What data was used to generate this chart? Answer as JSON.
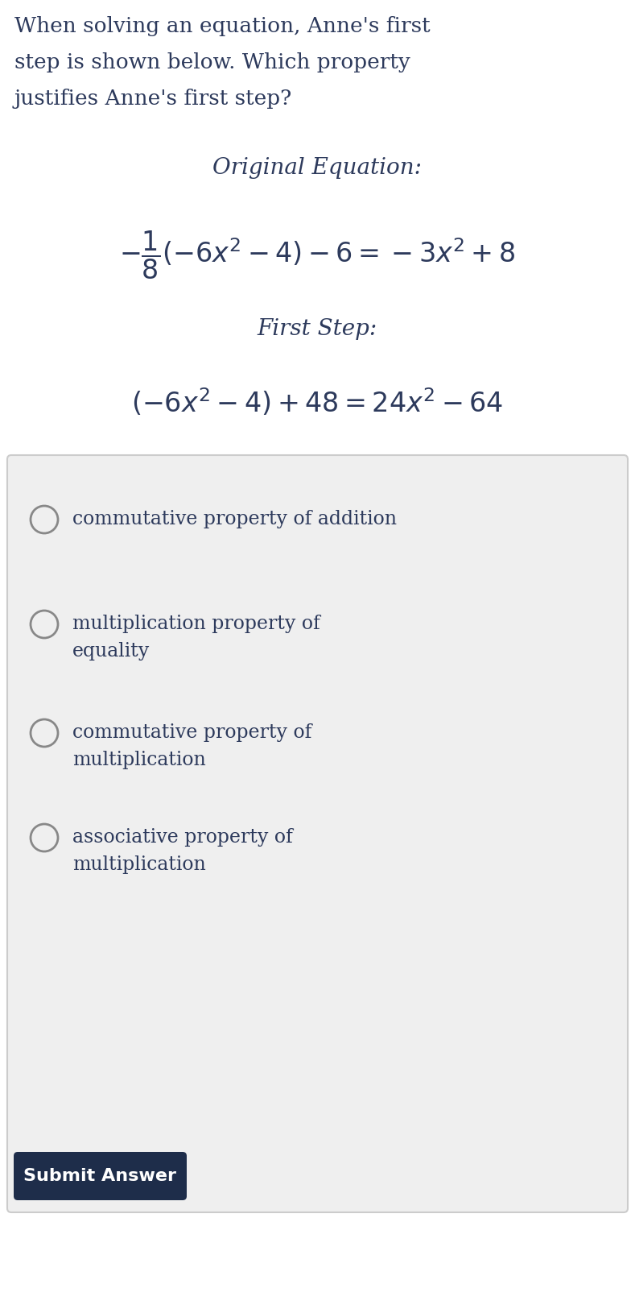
{
  "bg_color": "#ffffff",
  "text_color": "#2d3a5c",
  "question_line1": "When solving an equation, Anne's first",
  "question_line2": "step is shown below. Which property",
  "question_line3": "justifies Anne's first step?",
  "original_label": "Original Equation:",
  "first_step_label": "First Step:",
  "options": [
    "commutative property of addition",
    "multiplication property of\nequality",
    "commutative property of\nmultiplication",
    "associative property of\nmultiplication"
  ],
  "submit_text": "Submit Answer",
  "submit_bg": "#1e2d4a",
  "submit_text_color": "#ffffff",
  "box_bg": "#efefef",
  "box_border": "#cccccc",
  "question_fontsize": 19,
  "label_fontsize": 20,
  "eq_fontsize": 24,
  "option_fontsize": 17,
  "submit_fontsize": 16
}
